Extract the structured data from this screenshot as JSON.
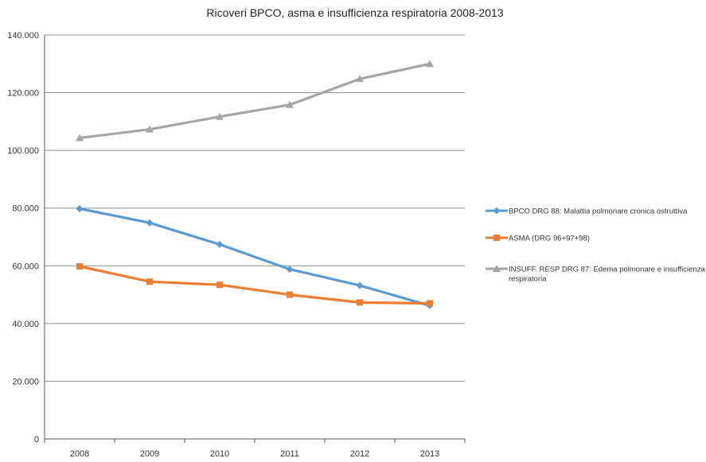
{
  "chart_data": {
    "type": "line",
    "title": "Ricoveri BPCO, asma e insufficienza respiratoria 2008-2013",
    "xlabel": "",
    "ylabel": "",
    "x": [
      "2008",
      "2009",
      "2010",
      "2011",
      "2012",
      "2013"
    ],
    "ylim": [
      0,
      140000
    ],
    "y_ticks": [
      0,
      20000,
      40000,
      60000,
      80000,
      100000,
      120000,
      140000
    ],
    "y_tick_labels": [
      "0",
      "20.000",
      "40.000",
      "60.000",
      "80.000",
      "100.000",
      "120.000",
      "140.000"
    ],
    "grid": true,
    "legend_position": "right",
    "series": [
      {
        "name": "BPCO DRG 88: Malattia polmonare cronica ostruttiva",
        "values": [
          79800,
          74900,
          67400,
          58800,
          53200,
          46200
        ],
        "color": "#5b9bd5",
        "marker": "diamond"
      },
      {
        "name": "ASMA (DRG 96+97+98)",
        "values": [
          59800,
          54500,
          53400,
          50000,
          47300,
          47000
        ],
        "color": "#ed7d31",
        "marker": "square"
      },
      {
        "name_lines": [
          "INSUFF. RESP DRG 87: Edema polmonare e insufficienza",
          "respiratoria"
        ],
        "values": [
          104300,
          107300,
          111700,
          115800,
          124800,
          130000
        ],
        "color": "#a5a5a5",
        "marker": "triangle"
      }
    ]
  }
}
